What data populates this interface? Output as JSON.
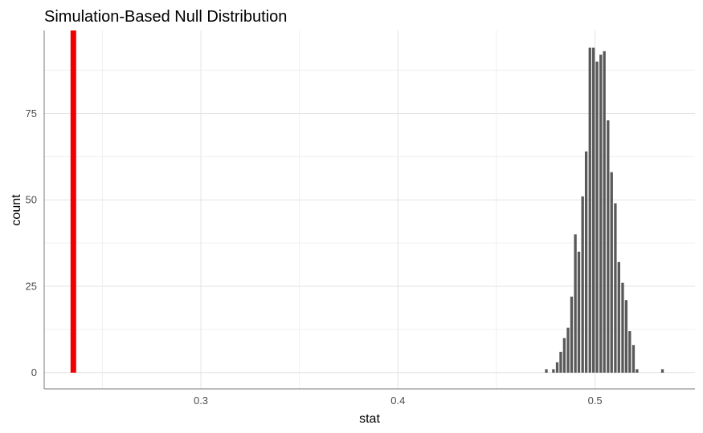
{
  "chart_data": {
    "type": "bar",
    "title": "Simulation-Based Null Distribution",
    "xlabel": "stat",
    "ylabel": "count",
    "xlim": [
      0.2205,
      0.5507
    ],
    "ylim": [
      -4.7,
      99
    ],
    "x_ticks": [
      0.3,
      0.4,
      0.5
    ],
    "x_tick_labels": [
      "0.3",
      "0.4",
      "0.5"
    ],
    "y_ticks": [
      0,
      25,
      50,
      75
    ],
    "y_tick_labels": [
      "0",
      "25",
      "50",
      "75"
    ],
    "grid": true,
    "bin_width": 0.00184,
    "bar_color": "#595959",
    "observed_line_color": "#ee0000",
    "observed_stat": 0.2353,
    "bins": {
      "x": [
        0.4753,
        0.4789,
        0.4808,
        0.4826,
        0.4844,
        0.4863,
        0.4881,
        0.49,
        0.4918,
        0.4937,
        0.4955,
        0.4974,
        0.4992,
        0.501,
        0.5029,
        0.5047,
        0.5066,
        0.5084,
        0.5103,
        0.5121,
        0.514,
        0.5158,
        0.5176,
        0.5195,
        0.5213,
        0.5342
      ],
      "count": [
        1,
        1,
        3,
        6,
        10,
        13,
        22,
        40,
        35,
        51,
        64,
        94,
        94,
        90,
        92,
        93,
        73,
        58,
        49,
        32,
        26,
        21,
        12,
        8,
        1,
        1
      ]
    }
  }
}
